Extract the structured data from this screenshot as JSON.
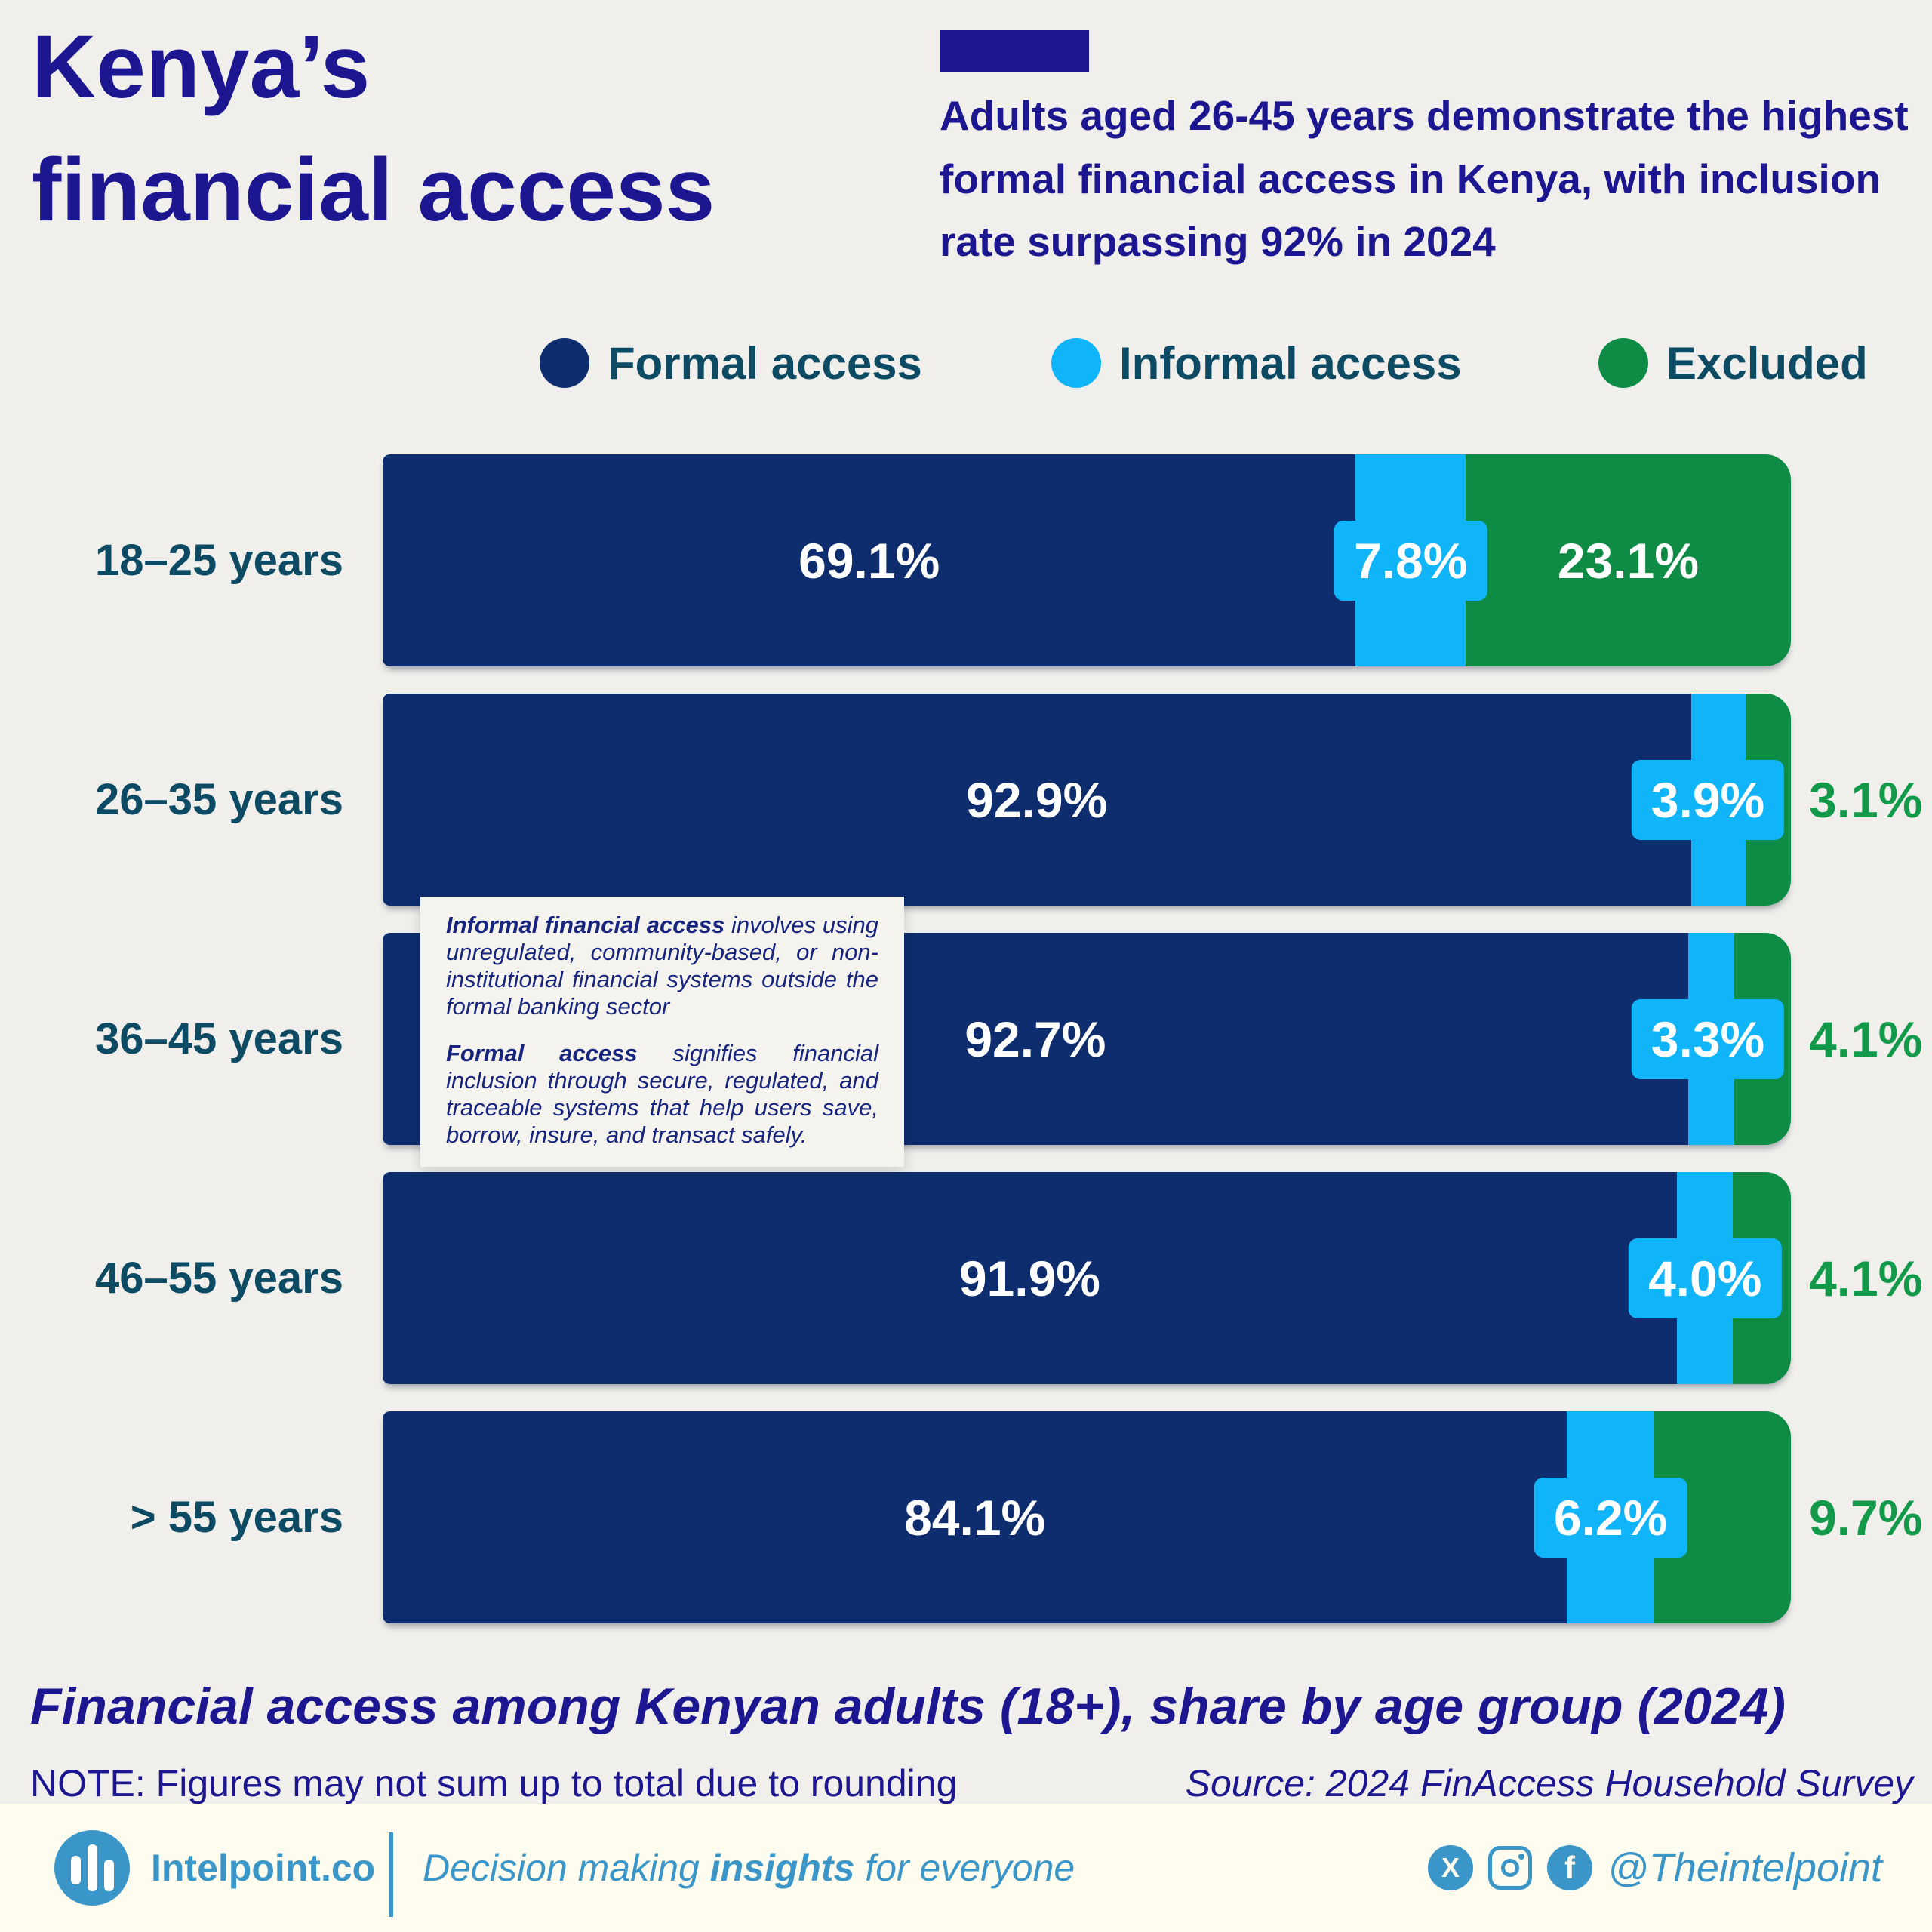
{
  "title": {
    "line1": "Kenya’s",
    "line2": "financial access"
  },
  "header": {
    "text": "Adults aged 26-45 years demonstrate the highest formal financial access in Kenya, with inclusion rate surpassing 92% in 2024"
  },
  "chart_data": {
    "type": "bar",
    "orientation": "horizontal-stacked",
    "categories": [
      "18–25 years",
      "26–35 years",
      "36–45 years",
      "46–55 years",
      "> 55 years"
    ],
    "series": [
      {
        "name": "Formal access",
        "color": "#0d2d6e",
        "values": [
          69.1,
          92.9,
          92.7,
          91.9,
          84.1
        ]
      },
      {
        "name": "Informal access",
        "color": "#10b4f8",
        "values": [
          7.8,
          3.9,
          3.3,
          4.0,
          6.2
        ]
      },
      {
        "name": "Excluded",
        "color": "#0e8b45",
        "values": [
          23.1,
          3.1,
          4.1,
          4.1,
          9.7
        ]
      }
    ],
    "excluded_label_inside": [
      true,
      false,
      false,
      false,
      false
    ],
    "value_suffix": "%",
    "xlim": [
      0,
      100
    ],
    "legend_position": "top",
    "grid": false
  },
  "tooltip": {
    "paragraphs": [
      {
        "lead": "Informal financial access",
        "text": " involves using unregulated, community-based, or non-institutional financial systems outside the formal banking sector"
      },
      {
        "lead": "Formal access",
        "text": " signifies financial inclusion through secure, regulated, and traceable systems that help users save, borrow, insure, and transact safely."
      }
    ]
  },
  "caption": {
    "text": "Financial access among Kenyan adults (18+), share by age group (2024)",
    "note": "NOTE: Figures may not sum up to total due to rounding",
    "source": "Source: 2024 FinAccess Household Survey"
  },
  "footer": {
    "brand": "Intelpoint.co",
    "tagline_prefix": "Decision making ",
    "tagline_bold": "insights",
    "tagline_suffix": " for everyone",
    "handle": "@Theintelpoint",
    "icons": [
      "x-icon",
      "instagram-icon",
      "facebook-icon",
      "bar-chart-logo"
    ]
  },
  "colors": {
    "background": "#f0efeb",
    "headline_ink": "#1c1691",
    "axis_label_teal": "#0d4a63",
    "excluded_outside_label": "#129a4a",
    "footer_background": "#fdfcee",
    "footer_blue": "#3a96c8"
  }
}
